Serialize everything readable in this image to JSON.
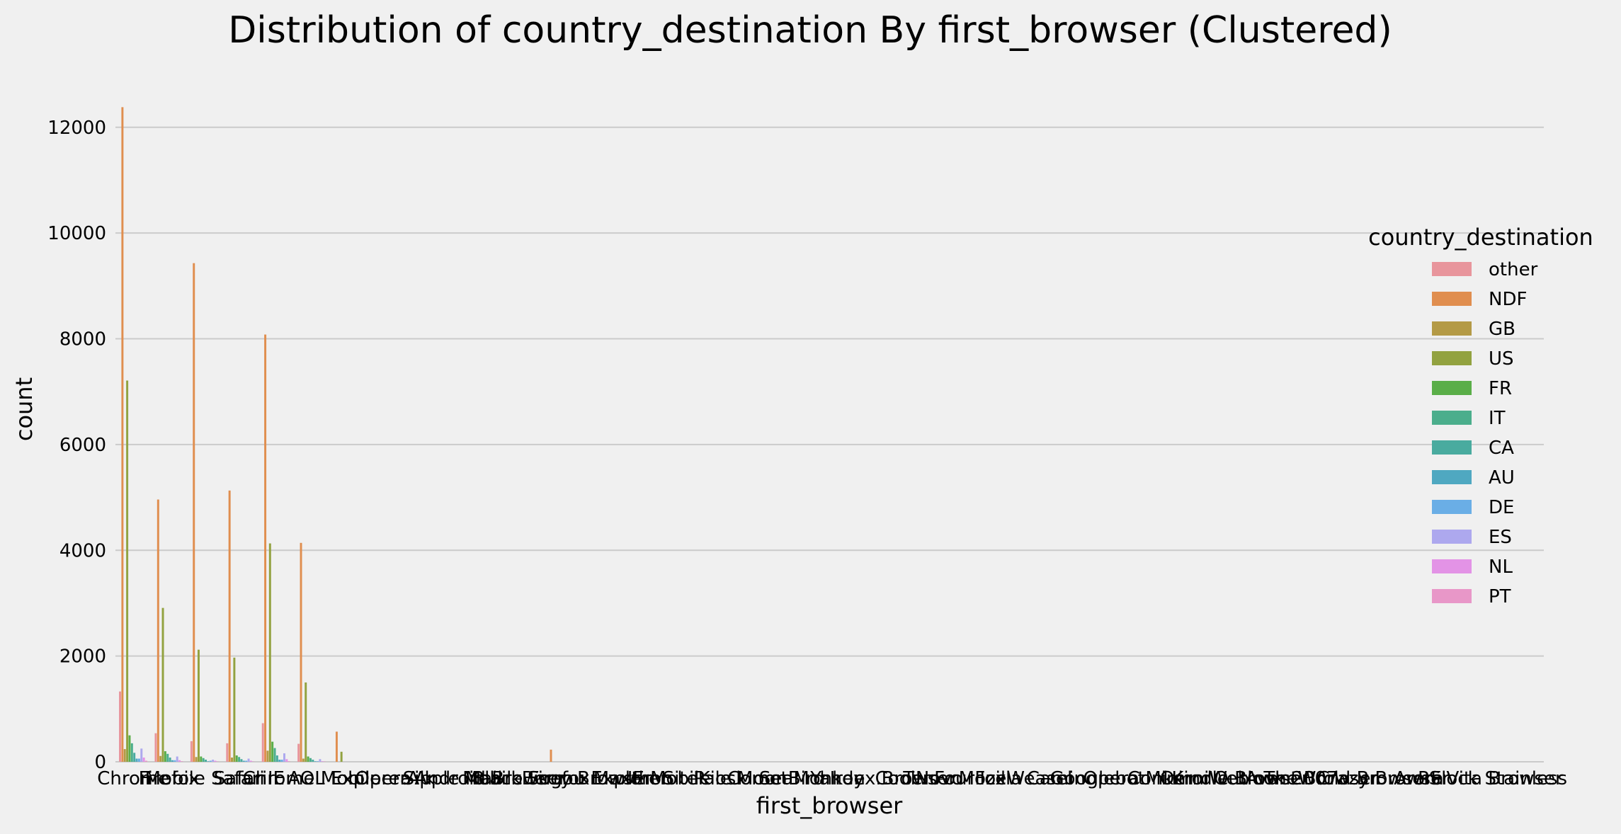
{
  "chart_data": {
    "type": "bar",
    "title": "Distribution of country_destination By first_browser (Clustered)",
    "xlabel": "first_browser",
    "ylabel": "count",
    "ylim": [
      0,
      12800
    ],
    "yticks": [
      0,
      2000,
      4000,
      6000,
      8000,
      10000,
      12000
    ],
    "grid": true,
    "legend": {
      "title": "country_destination",
      "placement": "right"
    },
    "categories": [
      "Chrome",
      "Firefox",
      "Mobile Safari",
      "Safari",
      "IE",
      "Chrome Mobile",
      "AOL Explorer",
      "Opera",
      "Silk",
      "Apple Mail",
      "Android Browser",
      "Mobile Firefox",
      "BlackBerry Browser",
      "Sogou Explorer",
      "Maxthon",
      "IE Mobile",
      "SiteKiosk",
      "Pale Moon",
      "CometBird",
      "SeaMonkey",
      "Iron",
      "Yandex.Browser",
      "CoolNovo",
      "TenFourFox",
      "Mozilla",
      "IceWeasel",
      "Camino",
      "Googlebot",
      "Opera Mini",
      "Conkeror",
      "OmniWeb",
      "Kindle Browser",
      "Outlook 2007",
      "Avant Browser",
      "TheWorld Browser",
      "Crazy Browser",
      "Arora",
      "Flock",
      "PS Vita Browser",
      "Stainless"
    ],
    "series": [
      {
        "name": "other",
        "color": "#e8959c",
        "values": [
          1330,
          540,
          390,
          350,
          730,
          340,
          0,
          0,
          0,
          0,
          0,
          0,
          0,
          0,
          0,
          0,
          0,
          0,
          0,
          0,
          0,
          0,
          0,
          0,
          0,
          0,
          0,
          0,
          0,
          0,
          0,
          0,
          0,
          0,
          0,
          0,
          0,
          0,
          0,
          0
        ]
      },
      {
        "name": "NDF",
        "color": "#e08e4f",
        "values": [
          12380,
          4960,
          9430,
          5130,
          8080,
          4140,
          570,
          0,
          0,
          0,
          0,
          0,
          230,
          0,
          0,
          0,
          0,
          0,
          0,
          0,
          0,
          0,
          0,
          0,
          0,
          0,
          0,
          0,
          0,
          0,
          0,
          0,
          0,
          0,
          0,
          0,
          0,
          0,
          0,
          0
        ]
      },
      {
        "name": "GB",
        "color": "#b49a46",
        "values": [
          240,
          110,
          90,
          80,
          210,
          60,
          0,
          0,
          0,
          0,
          0,
          0,
          0,
          0,
          0,
          0,
          0,
          0,
          0,
          0,
          0,
          0,
          0,
          0,
          0,
          0,
          0,
          0,
          0,
          0,
          0,
          0,
          0,
          0,
          0,
          0,
          0,
          0,
          0,
          0
        ]
      },
      {
        "name": "US",
        "color": "#92a240",
        "values": [
          7210,
          2910,
          2120,
          1970,
          4130,
          1500,
          190,
          0,
          0,
          0,
          0,
          0,
          0,
          0,
          0,
          0,
          0,
          0,
          0,
          0,
          0,
          0,
          0,
          0,
          0,
          0,
          0,
          0,
          0,
          0,
          0,
          0,
          0,
          0,
          0,
          0,
          0,
          0,
          0,
          0
        ]
      },
      {
        "name": "FR",
        "color": "#5aae48",
        "values": [
          500,
          200,
          100,
          120,
          380,
          100,
          0,
          0,
          0,
          0,
          0,
          0,
          0,
          0,
          0,
          0,
          0,
          0,
          0,
          0,
          0,
          0,
          0,
          0,
          0,
          0,
          0,
          0,
          0,
          0,
          0,
          0,
          0,
          0,
          0,
          0,
          0,
          0,
          0,
          0
        ]
      },
      {
        "name": "IT",
        "color": "#4bae8c",
        "values": [
          350,
          150,
          70,
          90,
          260,
          70,
          0,
          0,
          0,
          0,
          0,
          0,
          0,
          0,
          0,
          0,
          0,
          0,
          0,
          0,
          0,
          0,
          0,
          0,
          0,
          0,
          0,
          0,
          0,
          0,
          0,
          0,
          0,
          0,
          0,
          0,
          0,
          0,
          0,
          0
        ]
      },
      {
        "name": "CA",
        "color": "#49ab9f",
        "values": [
          170,
          80,
          40,
          50,
          120,
          40,
          0,
          0,
          0,
          0,
          0,
          0,
          0,
          0,
          0,
          0,
          0,
          0,
          0,
          0,
          0,
          0,
          0,
          0,
          0,
          0,
          0,
          0,
          0,
          0,
          0,
          0,
          0,
          0,
          0,
          0,
          0,
          0,
          0,
          0
        ]
      },
      {
        "name": "AU",
        "color": "#4fa8c1",
        "values": [
          60,
          30,
          10,
          20,
          40,
          10,
          0,
          0,
          0,
          0,
          0,
          0,
          0,
          0,
          0,
          0,
          0,
          0,
          0,
          0,
          0,
          0,
          0,
          0,
          0,
          0,
          0,
          0,
          0,
          0,
          0,
          0,
          0,
          0,
          0,
          0,
          0,
          0,
          0,
          0
        ]
      },
      {
        "name": "DE",
        "color": "#6aaee6",
        "values": [
          60,
          30,
          20,
          20,
          40,
          10,
          0,
          0,
          0,
          0,
          0,
          0,
          0,
          0,
          0,
          0,
          0,
          0,
          0,
          0,
          0,
          0,
          0,
          0,
          0,
          0,
          0,
          0,
          0,
          0,
          0,
          0,
          0,
          0,
          0,
          0,
          0,
          0,
          0,
          0
        ]
      },
      {
        "name": "ES",
        "color": "#ada8ee",
        "values": [
          250,
          100,
          40,
          60,
          160,
          50,
          0,
          0,
          0,
          0,
          0,
          0,
          0,
          0,
          0,
          0,
          0,
          0,
          0,
          0,
          0,
          0,
          0,
          0,
          0,
          0,
          0,
          0,
          0,
          0,
          0,
          0,
          0,
          0,
          0,
          0,
          0,
          0,
          0,
          0
        ]
      },
      {
        "name": "NL",
        "color": "#e393e6",
        "values": [
          80,
          30,
          20,
          20,
          50,
          10,
          0,
          0,
          0,
          0,
          0,
          0,
          0,
          0,
          0,
          0,
          0,
          0,
          0,
          0,
          0,
          0,
          0,
          0,
          0,
          0,
          0,
          0,
          0,
          0,
          0,
          0,
          0,
          0,
          0,
          0,
          0,
          0,
          0,
          0
        ]
      },
      {
        "name": "PT",
        "color": "#e897c8",
        "values": [
          20,
          10,
          5,
          5,
          10,
          5,
          0,
          0,
          0,
          0,
          0,
          0,
          0,
          0,
          0,
          0,
          0,
          0,
          0,
          0,
          0,
          0,
          0,
          0,
          0,
          0,
          0,
          0,
          0,
          0,
          0,
          0,
          0,
          0,
          0,
          0,
          0,
          0,
          0,
          0
        ]
      }
    ]
  }
}
